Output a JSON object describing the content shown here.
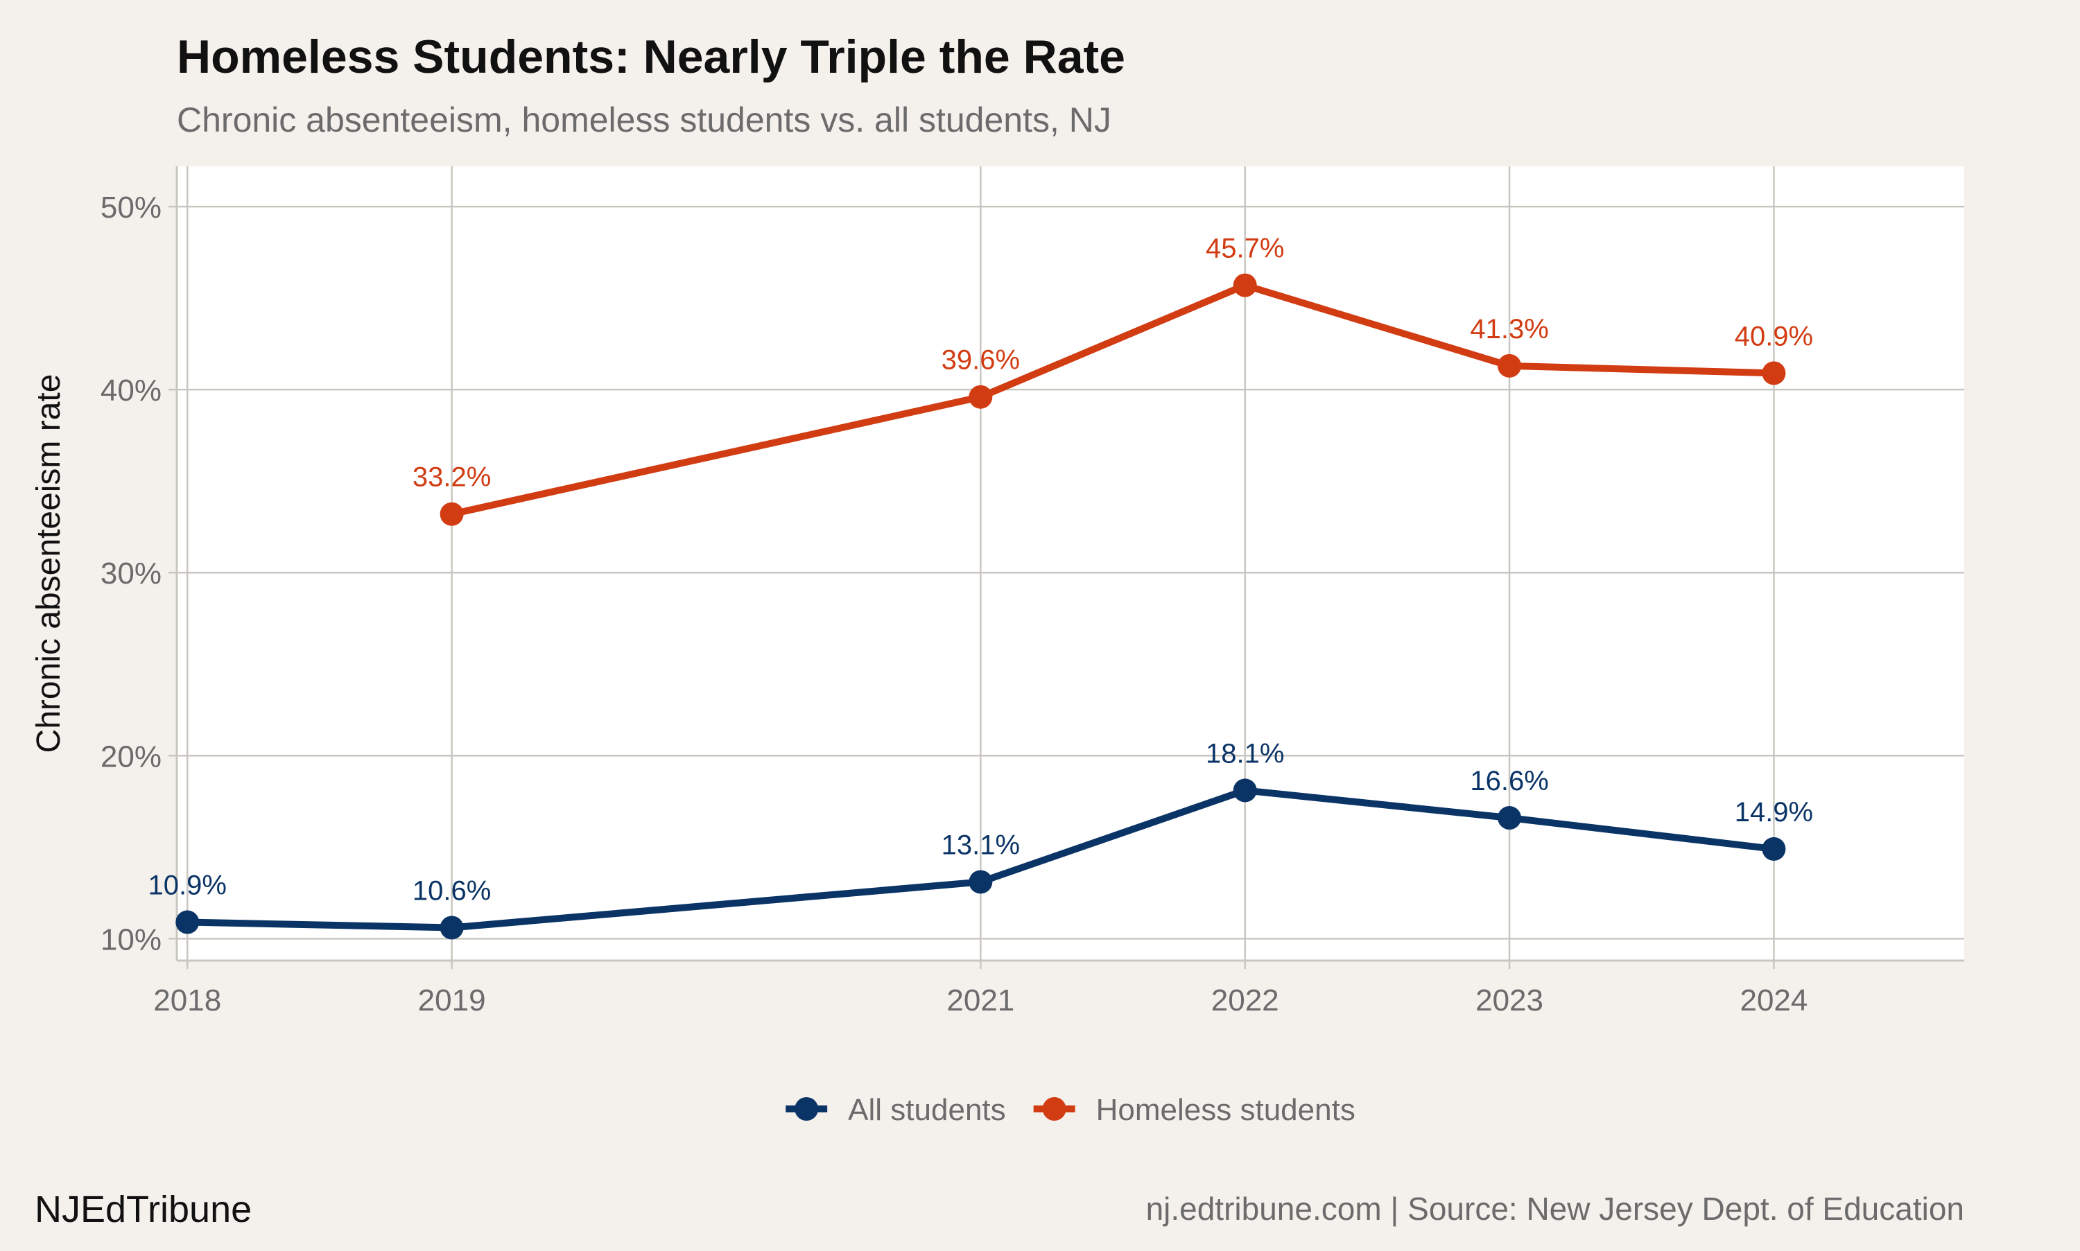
{
  "chart_data": {
    "type": "line",
    "title": "Homeless Students: Nearly Triple the Rate",
    "subtitle": "Chronic absenteeism, homeless students vs. all students, NJ",
    "ylabel": "Chronic absenteeism rate",
    "xlabel": "",
    "xlim": [
      2017.96,
      2024.72
    ],
    "ylim": [
      8.8,
      52.2
    ],
    "x_ticks": [
      2018,
      2019,
      2021,
      2022,
      2023,
      2024
    ],
    "x_tick_labels": [
      "2018",
      "2019",
      "2021",
      "2022",
      "2023",
      "2024"
    ],
    "y_ticks": [
      10,
      20,
      30,
      40,
      50
    ],
    "y_tick_labels": [
      "10%",
      "20%",
      "30%",
      "40%",
      "50%"
    ],
    "grid": true,
    "legend_position": "bottom",
    "series": [
      {
        "name": "All students",
        "color": "#0b3466",
        "points": [
          {
            "x": 2018,
            "y": 10.9,
            "label": "10.9%"
          },
          {
            "x": 2019,
            "y": 10.6,
            "label": "10.6%"
          },
          {
            "x": 2021,
            "y": 13.1,
            "label": "13.1%"
          },
          {
            "x": 2022,
            "y": 18.1,
            "label": "18.1%"
          },
          {
            "x": 2023,
            "y": 16.6,
            "label": "16.6%"
          },
          {
            "x": 2024,
            "y": 14.9,
            "label": "14.9%"
          }
        ]
      },
      {
        "name": "Homeless students",
        "color": "#d23c12",
        "points": [
          {
            "x": 2019,
            "y": 33.2,
            "label": "33.2%"
          },
          {
            "x": 2021,
            "y": 39.6,
            "label": "39.6%"
          },
          {
            "x": 2022,
            "y": 45.7,
            "label": "45.7%"
          },
          {
            "x": 2023,
            "y": 41.3,
            "label": "41.3%"
          },
          {
            "x": 2024,
            "y": 40.9,
            "label": "40.9%"
          }
        ]
      }
    ]
  },
  "footer": {
    "brand": "NJEdTribune",
    "source": "nj.edtribune.com | Source: New Jersey Dept. of Education"
  },
  "colors": {
    "background": "#f4f1ec",
    "panel": "#ffffff",
    "grid": "#c9c6c0",
    "muted_text": "#6b6b6b"
  }
}
